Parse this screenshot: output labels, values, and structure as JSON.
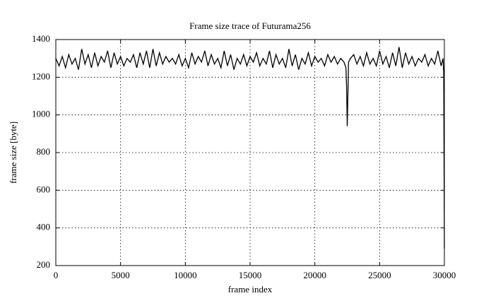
{
  "chart_data": {
    "type": "line",
    "title": "Frame size trace of Futurama256",
    "x_label": "frame index",
    "y_label": "frame size [byte]",
    "x": [
      0,
      250,
      500,
      750,
      1000,
      1250,
      1500,
      1750,
      2000,
      2250,
      2500,
      2750,
      3000,
      3250,
      3500,
      3750,
      4000,
      4250,
      4500,
      4750,
      5000,
      5250,
      5500,
      5750,
      6000,
      6250,
      6500,
      6750,
      7000,
      7250,
      7500,
      7750,
      8000,
      8250,
      8500,
      8750,
      9000,
      9250,
      9500,
      9750,
      10000,
      10250,
      10500,
      10750,
      11000,
      11250,
      11500,
      11750,
      12000,
      12250,
      12500,
      12750,
      13000,
      13250,
      13500,
      13750,
      14000,
      14250,
      14500,
      14750,
      15000,
      15250,
      15500,
      15750,
      16000,
      16250,
      16500,
      16750,
      17000,
      17250,
      17500,
      17750,
      18000,
      18250,
      18500,
      18750,
      19000,
      19250,
      19500,
      19750,
      20000,
      20250,
      20500,
      20750,
      21000,
      21250,
      21500,
      21750,
      22000,
      22250,
      22400,
      22450,
      22500,
      22550,
      22600,
      22750,
      23000,
      23250,
      23500,
      23750,
      24000,
      24250,
      24500,
      24750,
      25000,
      25250,
      25500,
      25750,
      26000,
      26250,
      26500,
      26750,
      27000,
      27250,
      27500,
      27750,
      28000,
      28250,
      28500,
      28750,
      29000,
      29250,
      29500,
      29750,
      29900,
      29950,
      30000
    ],
    "series": [
      {
        "name": "Futurama256",
        "color": "#000000",
        "values": [
          1300,
          1260,
          1310,
          1250,
          1320,
          1270,
          1300,
          1240,
          1350,
          1270,
          1320,
          1250,
          1330,
          1260,
          1310,
          1280,
          1340,
          1250,
          1330,
          1270,
          1310,
          1260,
          1300,
          1280,
          1320,
          1250,
          1330,
          1270,
          1340,
          1250,
          1350,
          1260,
          1330,
          1270,
          1310,
          1280,
          1300,
          1270,
          1320,
          1260,
          1300,
          1250,
          1330,
          1270,
          1310,
          1280,
          1340,
          1260,
          1320,
          1270,
          1300,
          1250,
          1340,
          1260,
          1320,
          1240,
          1300,
          1270,
          1320,
          1260,
          1310,
          1280,
          1330,
          1260,
          1300,
          1270,
          1340,
          1250,
          1320,
          1270,
          1300,
          1250,
          1350,
          1260,
          1320,
          1240,
          1300,
          1270,
          1330,
          1260,
          1310,
          1280,
          1300,
          1260,
          1320,
          1280,
          1310,
          1270,
          1300,
          1280,
          1250,
          1150,
          940,
          1100,
          1280,
          1300,
          1320,
          1270,
          1310,
          1260,
          1330,
          1270,
          1300,
          1260,
          1340,
          1270,
          1310,
          1250,
          1330,
          1260,
          1360,
          1250,
          1330,
          1270,
          1310,
          1260,
          1300,
          1280,
          1320,
          1260,
          1300,
          1270,
          1340,
          1260,
          1300,
          1220,
          290
        ]
      }
    ],
    "xlim": [
      0,
      30000
    ],
    "xticks": [
      0,
      5000,
      10000,
      15000,
      20000,
      25000,
      30000
    ],
    "ylim": [
      200,
      1400
    ],
    "yticks": [
      200,
      400,
      600,
      800,
      1000,
      1200,
      1400
    ],
    "grid": true
  }
}
